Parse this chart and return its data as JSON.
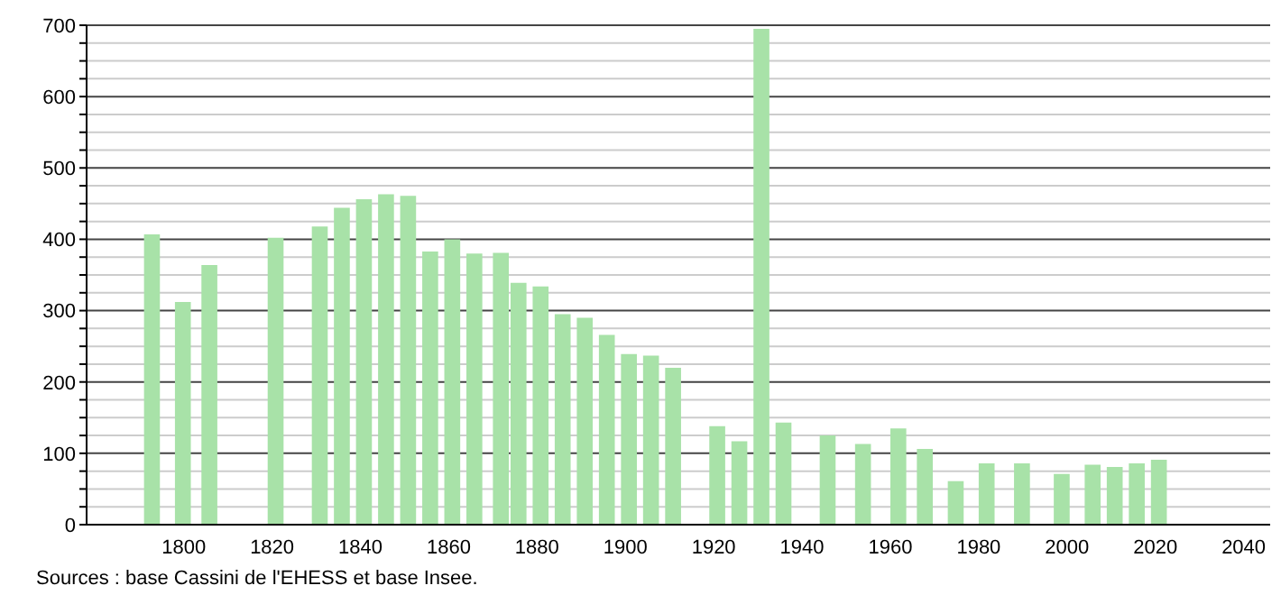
{
  "chart_data": {
    "type": "bar",
    "x": [
      1793,
      1800,
      1806,
      1821,
      1831,
      1836,
      1841,
      1846,
      1851,
      1856,
      1861,
      1866,
      1872,
      1876,
      1881,
      1886,
      1891,
      1896,
      1901,
      1906,
      1911,
      1921,
      1926,
      1931,
      1936,
      1946,
      1954,
      1962,
      1968,
      1975,
      1982,
      1990,
      1999,
      2006,
      2011,
      2016,
      2021
    ],
    "values": [
      407,
      312,
      364,
      402,
      418,
      444,
      456,
      463,
      461,
      383,
      400,
      380,
      381,
      339,
      334,
      295,
      290,
      266,
      239,
      237,
      220,
      138,
      117,
      695,
      143,
      125,
      113,
      135,
      106,
      61,
      86,
      86,
      71,
      84,
      81,
      86,
      91
    ],
    "color": "#a8e2a8",
    "xlim": [
      1778,
      2046
    ],
    "xticks": [
      1800,
      1820,
      1840,
      1860,
      1880,
      1900,
      1920,
      1940,
      1960,
      1980,
      2000,
      2020,
      2040
    ],
    "ylim": [
      0,
      700
    ],
    "yticks": [
      0,
      {
        "value": 25,
        "label": null
      },
      {
        "value": 50,
        "label": null
      },
      {
        "value": 75,
        "label": null
      },
      100,
      {
        "value": 125,
        "label": null
      },
      {
        "value": 150,
        "label": null
      },
      {
        "value": 175,
        "label": null
      },
      200,
      {
        "value": 225,
        "label": null
      },
      {
        "value": 250,
        "label": null
      },
      {
        "value": 275,
        "label": null
      },
      300,
      {
        "value": 325,
        "label": null
      },
      {
        "value": 350,
        "label": null
      },
      {
        "value": 375,
        "label": null
      },
      400,
      {
        "value": 425,
        "label": null
      },
      {
        "value": 450,
        "label": null
      },
      {
        "value": 475,
        "label": null
      },
      500,
      {
        "value": 525,
        "label": null
      },
      {
        "value": 550,
        "label": null
      },
      {
        "value": 575,
        "label": null
      },
      600,
      {
        "value": 625,
        "label": null
      },
      {
        "value": 650,
        "label": null
      },
      {
        "value": 675,
        "label": null
      },
      700
    ],
    "grid": "y",
    "annotations": [
      "Sources : base Cassini de l'EHESS et base Insee."
    ]
  }
}
